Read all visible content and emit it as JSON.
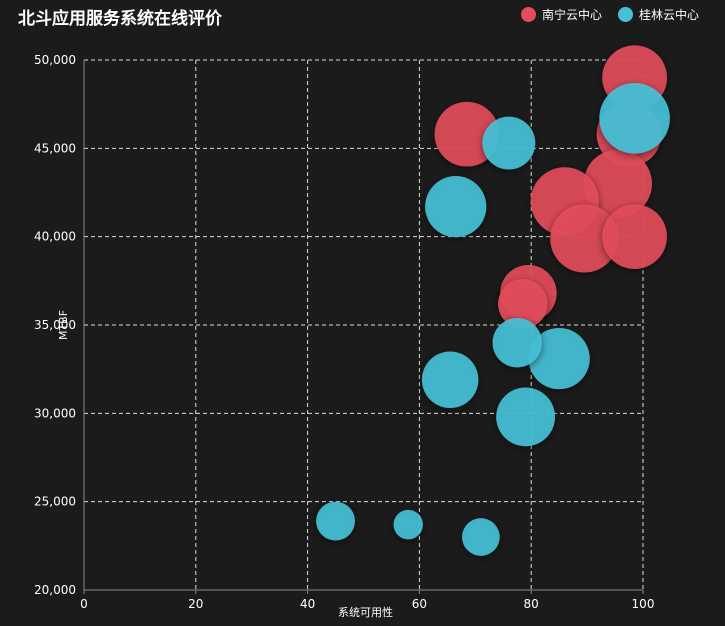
{
  "chart_data": {
    "type": "scatter",
    "title": "北斗应用服务系统在线评价",
    "xlabel": "系统可用性",
    "ylabel": "MTBF",
    "xlim": [
      0,
      100
    ],
    "ylim": [
      20000,
      50000
    ],
    "x_ticks": [
      "0",
      "20",
      "40",
      "60",
      "80",
      "100"
    ],
    "y_ticks": [
      "20,000",
      "25,000",
      "30,000",
      "35,000",
      "40,000",
      "45,000",
      "50,000"
    ],
    "grid": true,
    "legend_position": "top-right",
    "series": [
      {
        "name": "南宁云中心",
        "color": "#e34c5b",
        "points": [
          {
            "x": 98.5,
            "y": 49000,
            "size": 55
          },
          {
            "x": 68.5,
            "y": 45800,
            "size": 55
          },
          {
            "x": 97.5,
            "y": 45800,
            "size": 55
          },
          {
            "x": 95.5,
            "y": 43000,
            "size": 58
          },
          {
            "x": 86,
            "y": 42000,
            "size": 58
          },
          {
            "x": 89.5,
            "y": 39900,
            "size": 58
          },
          {
            "x": 98.5,
            "y": 40000,
            "size": 55
          },
          {
            "x": 79.5,
            "y": 36800,
            "size": 48
          },
          {
            "x": 78.5,
            "y": 36200,
            "size": 42
          }
        ]
      },
      {
        "name": "桂林云中心",
        "color": "#45c2d8",
        "points": [
          {
            "x": 98.5,
            "y": 46700,
            "size": 60
          },
          {
            "x": 76,
            "y": 45300,
            "size": 45
          },
          {
            "x": 66.5,
            "y": 41700,
            "size": 52
          },
          {
            "x": 85,
            "y": 33100,
            "size": 52
          },
          {
            "x": 77.5,
            "y": 34000,
            "size": 42
          },
          {
            "x": 65.5,
            "y": 31900,
            "size": 48
          },
          {
            "x": 79,
            "y": 29800,
            "size": 50
          },
          {
            "x": 45,
            "y": 23900,
            "size": 33
          },
          {
            "x": 58,
            "y": 23700,
            "size": 25
          },
          {
            "x": 71,
            "y": 23000,
            "size": 32
          }
        ]
      }
    ]
  }
}
